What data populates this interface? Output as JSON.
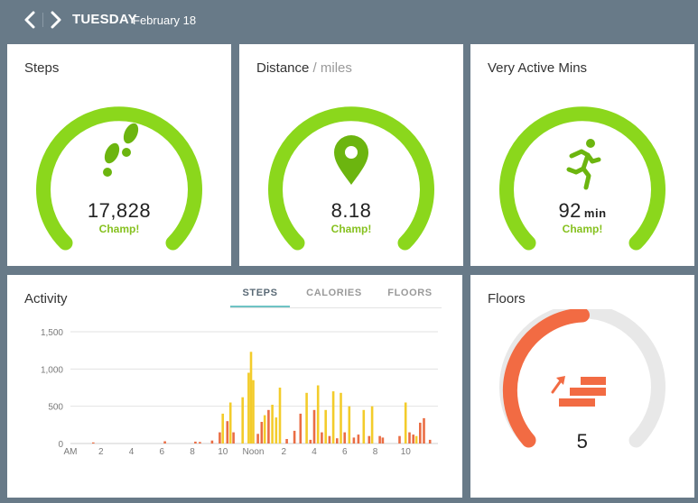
{
  "header": {
    "day": "TUESDAY",
    "date": "February 18",
    "prev_icon": "chevron-left-icon",
    "next_icon": "chevron-right-icon"
  },
  "colors": {
    "background": "#687a88",
    "green": "#8bd71c",
    "green_dark": "#6cb50f",
    "green_text": "#86c11f",
    "floors_orange": "#f26b43",
    "gauge_track": "#e8e8e8",
    "bar_orange": "#ea6d44",
    "bar_yellow": "#f3cc2b"
  },
  "cards": {
    "steps": {
      "title": "Steps",
      "value": "17,828",
      "label": "Champ!",
      "icon": "footprints-icon"
    },
    "distance": {
      "title": "Distance",
      "unit": "/ miles",
      "value": "8.18",
      "label": "Champ!",
      "icon": "location-pin-icon"
    },
    "active": {
      "title": "Very Active Mins",
      "value": "92",
      "suffix": "min",
      "label": "Champ!",
      "icon": "runner-icon"
    },
    "floors": {
      "title": "Floors",
      "value": "5",
      "progress": 0.5,
      "icon": "stairs-icon"
    }
  },
  "activity": {
    "title": "Activity",
    "tabs": [
      {
        "label": "STEPS",
        "active": true
      },
      {
        "label": "CALORIES",
        "active": false
      },
      {
        "label": "FLOORS",
        "active": false
      }
    ]
  },
  "chart_data": {
    "type": "bar",
    "title": "Activity",
    "ylim": [
      0,
      1500
    ],
    "y_ticks": [
      0,
      500,
      1000,
      1500
    ],
    "y_tick_labels": [
      "0",
      "500",
      "1,000",
      "1,500"
    ],
    "x_ticks": [
      {
        "hour": 0,
        "label": "AM"
      },
      {
        "hour": 2,
        "label": "2"
      },
      {
        "hour": 4,
        "label": "4"
      },
      {
        "hour": 6,
        "label": "6"
      },
      {
        "hour": 8,
        "label": "8"
      },
      {
        "hour": 10,
        "label": "10"
      },
      {
        "hour": 12,
        "label": "Noon"
      },
      {
        "hour": 14,
        "label": "2"
      },
      {
        "hour": 16,
        "label": "4"
      },
      {
        "hour": 18,
        "label": "6"
      },
      {
        "hour": 20,
        "label": "8"
      },
      {
        "hour": 22,
        "label": "10"
      }
    ],
    "grid": true,
    "bars": [
      {
        "hour": 1.5,
        "value": 15,
        "color": "orange"
      },
      {
        "hour": 6.2,
        "value": 30,
        "color": "orange"
      },
      {
        "hour": 8.2,
        "value": 25,
        "color": "orange"
      },
      {
        "hour": 8.5,
        "value": 20,
        "color": "orange"
      },
      {
        "hour": 9.3,
        "value": 40,
        "color": "orange"
      },
      {
        "hour": 9.8,
        "value": 150,
        "color": "orange"
      },
      {
        "hour": 10.0,
        "value": 400,
        "color": "yellow"
      },
      {
        "hour": 10.3,
        "value": 300,
        "color": "orange"
      },
      {
        "hour": 10.5,
        "value": 550,
        "color": "yellow"
      },
      {
        "hour": 10.7,
        "value": 150,
        "color": "orange"
      },
      {
        "hour": 11.3,
        "value": 620,
        "color": "yellow"
      },
      {
        "hour": 11.7,
        "value": 950,
        "color": "yellow"
      },
      {
        "hour": 11.85,
        "value": 1230,
        "color": "yellow"
      },
      {
        "hour": 12.0,
        "value": 850,
        "color": "yellow"
      },
      {
        "hour": 12.3,
        "value": 130,
        "color": "orange"
      },
      {
        "hour": 12.55,
        "value": 290,
        "color": "orange"
      },
      {
        "hour": 12.75,
        "value": 380,
        "color": "yellow"
      },
      {
        "hour": 13.0,
        "value": 450,
        "color": "orange"
      },
      {
        "hour": 13.25,
        "value": 520,
        "color": "yellow"
      },
      {
        "hour": 13.5,
        "value": 350,
        "color": "yellow"
      },
      {
        "hour": 13.75,
        "value": 750,
        "color": "yellow"
      },
      {
        "hour": 14.2,
        "value": 60,
        "color": "orange"
      },
      {
        "hour": 14.7,
        "value": 170,
        "color": "orange"
      },
      {
        "hour": 15.1,
        "value": 400,
        "color": "orange"
      },
      {
        "hour": 15.5,
        "value": 680,
        "color": "yellow"
      },
      {
        "hour": 15.75,
        "value": 50,
        "color": "orange"
      },
      {
        "hour": 16.0,
        "value": 450,
        "color": "orange"
      },
      {
        "hour": 16.25,
        "value": 780,
        "color": "yellow"
      },
      {
        "hour": 16.5,
        "value": 150,
        "color": "orange"
      },
      {
        "hour": 16.75,
        "value": 450,
        "color": "yellow"
      },
      {
        "hour": 17.0,
        "value": 100,
        "color": "orange"
      },
      {
        "hour": 17.25,
        "value": 700,
        "color": "yellow"
      },
      {
        "hour": 17.5,
        "value": 70,
        "color": "orange"
      },
      {
        "hour": 17.75,
        "value": 680,
        "color": "yellow"
      },
      {
        "hour": 18.0,
        "value": 150,
        "color": "orange"
      },
      {
        "hour": 18.3,
        "value": 500,
        "color": "yellow"
      },
      {
        "hour": 18.6,
        "value": 80,
        "color": "orange"
      },
      {
        "hour": 18.9,
        "value": 120,
        "color": "orange"
      },
      {
        "hour": 19.25,
        "value": 450,
        "color": "yellow"
      },
      {
        "hour": 19.6,
        "value": 100,
        "color": "orange"
      },
      {
        "hour": 19.8,
        "value": 500,
        "color": "yellow"
      },
      {
        "hour": 20.3,
        "value": 100,
        "color": "orange"
      },
      {
        "hour": 20.5,
        "value": 80,
        "color": "orange"
      },
      {
        "hour": 21.6,
        "value": 100,
        "color": "orange"
      },
      {
        "hour": 22.0,
        "value": 550,
        "color": "yellow"
      },
      {
        "hour": 22.25,
        "value": 150,
        "color": "orange"
      },
      {
        "hour": 22.5,
        "value": 120,
        "color": "orange"
      },
      {
        "hour": 22.7,
        "value": 100,
        "color": "yellow"
      },
      {
        "hour": 22.95,
        "value": 280,
        "color": "orange"
      },
      {
        "hour": 23.2,
        "value": 340,
        "color": "orange"
      },
      {
        "hour": 23.6,
        "value": 50,
        "color": "orange"
      }
    ]
  }
}
